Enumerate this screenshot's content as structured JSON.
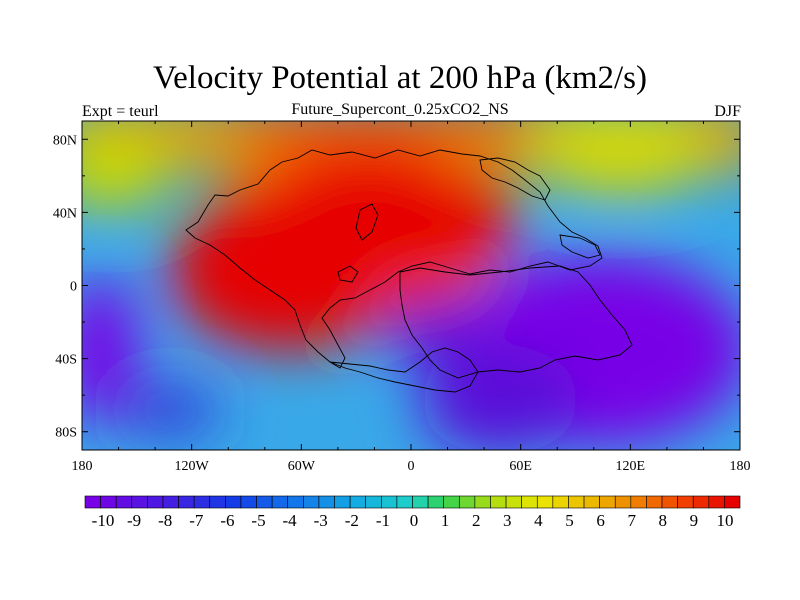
{
  "title": "Velocity Potential at 200 hPa (km2/s)",
  "subtitle": "Future_Supercont_0.25xCO2_NS",
  "left_label": "Expt = teurl",
  "right_label": "DJF",
  "lon_ticks": [
    "180",
    "120W",
    "60W",
    "0",
    "60E",
    "120E",
    "180"
  ],
  "lat_ticks": [
    "80N",
    "40N",
    "0",
    "40S",
    "80S"
  ],
  "colorbar": {
    "labels": [
      "-10",
      "-9",
      "-8",
      "-7",
      "-6",
      "-5",
      "-4",
      "-3",
      "-2",
      "-1",
      "0",
      "1",
      "2",
      "3",
      "4",
      "5",
      "6",
      "7",
      "8",
      "9",
      "10"
    ]
  },
  "colors": {
    "max": "#e60000",
    "min": "#7800e6",
    "coast": "#000000"
  }
}
